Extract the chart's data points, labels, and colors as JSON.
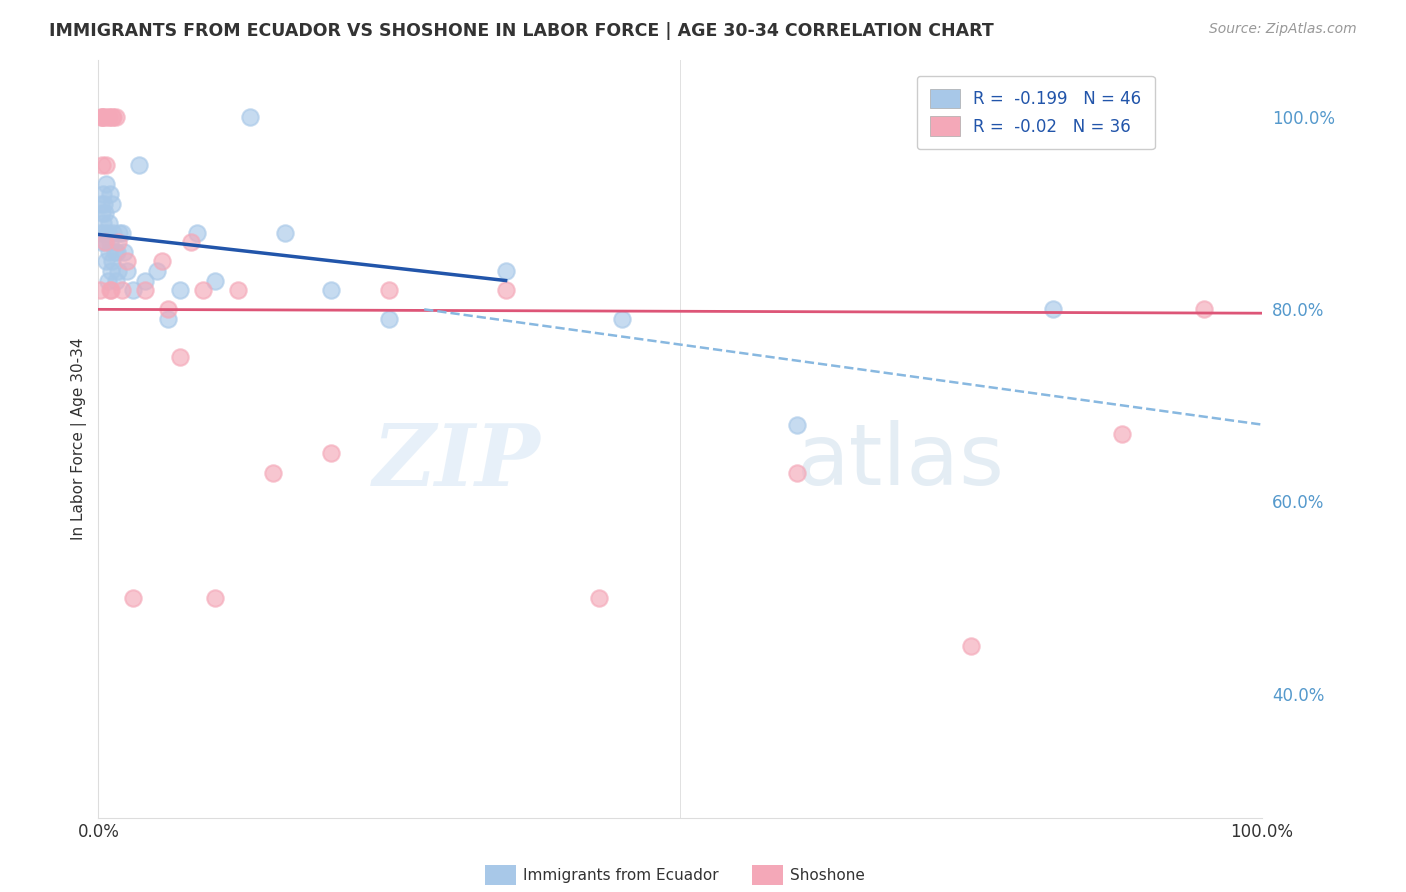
{
  "title": "IMMIGRANTS FROM ECUADOR VS SHOSHONE IN LABOR FORCE | AGE 30-34 CORRELATION CHART",
  "source": "Source: ZipAtlas.com",
  "ylabel": "In Labor Force | Age 30-34",
  "xlim": [
    0,
    1.0
  ],
  "ylim": [
    0.27,
    1.06
  ],
  "yticks": [
    0.4,
    0.6,
    0.8,
    1.0
  ],
  "ytick_labels": [
    "40.0%",
    "60.0%",
    "80.0%",
    "100.0%"
  ],
  "xticks": [
    0.0,
    0.2,
    0.4,
    0.6,
    0.8,
    1.0
  ],
  "xtick_labels": [
    "0.0%",
    "",
    "",
    "",
    "",
    "100.0%"
  ],
  "ecuador_R": -0.199,
  "ecuador_N": 46,
  "shoshone_R": -0.02,
  "shoshone_N": 36,
  "ecuador_color": "#a8c8e8",
  "shoshone_color": "#f4a8b8",
  "ecuador_line_color": "#2255aa",
  "shoshone_line_color": "#dd5577",
  "dashed_line_color": "#88b8e0",
  "watermark_zip": "ZIP",
  "watermark_atlas": "atlas",
  "ecuador_x": [
    0.001,
    0.002,
    0.002,
    0.003,
    0.004,
    0.004,
    0.005,
    0.005,
    0.006,
    0.006,
    0.007,
    0.007,
    0.008,
    0.008,
    0.009,
    0.009,
    0.01,
    0.01,
    0.011,
    0.012,
    0.012,
    0.013,
    0.014,
    0.015,
    0.016,
    0.017,
    0.018,
    0.02,
    0.022,
    0.025,
    0.03,
    0.035,
    0.04,
    0.05,
    0.06,
    0.07,
    0.085,
    0.1,
    0.13,
    0.16,
    0.2,
    0.25,
    0.35,
    0.45,
    0.6,
    0.82
  ],
  "ecuador_y": [
    0.88,
    0.91,
    0.87,
    0.9,
    0.92,
    0.89,
    0.88,
    0.91,
    0.9,
    0.87,
    0.85,
    0.93,
    0.88,
    0.83,
    0.89,
    0.86,
    0.92,
    0.87,
    0.84,
    0.91,
    0.85,
    0.88,
    0.86,
    0.83,
    0.86,
    0.84,
    0.88,
    0.88,
    0.86,
    0.84,
    0.82,
    0.95,
    0.83,
    0.84,
    0.79,
    0.82,
    0.88,
    0.83,
    1.0,
    0.88,
    0.82,
    0.79,
    0.84,
    0.79,
    0.68,
    0.8
  ],
  "shoshone_x": [
    0.001,
    0.002,
    0.003,
    0.003,
    0.004,
    0.005,
    0.006,
    0.007,
    0.008,
    0.009,
    0.01,
    0.011,
    0.012,
    0.013,
    0.015,
    0.017,
    0.02,
    0.025,
    0.03,
    0.04,
    0.055,
    0.06,
    0.07,
    0.08,
    0.09,
    0.1,
    0.12,
    0.15,
    0.2,
    0.25,
    0.35,
    0.43,
    0.6,
    0.75,
    0.88,
    0.95
  ],
  "shoshone_y": [
    0.82,
    1.0,
    1.0,
    0.95,
    1.0,
    1.0,
    0.87,
    0.95,
    1.0,
    1.0,
    0.82,
    0.82,
    1.0,
    1.0,
    1.0,
    0.87,
    0.82,
    0.85,
    0.5,
    0.82,
    0.85,
    0.8,
    0.75,
    0.87,
    0.82,
    0.5,
    0.82,
    0.63,
    0.65,
    0.82,
    0.82,
    0.5,
    0.63,
    0.45,
    0.67,
    0.8
  ],
  "blue_line_x0": 0.0,
  "blue_line_y0": 0.878,
  "blue_line_x1": 0.35,
  "blue_line_y1": 0.83,
  "pink_line_x0": 0.0,
  "pink_line_y0": 0.8,
  "pink_line_x1": 1.0,
  "pink_line_y1": 0.796,
  "dash_line_x0": 0.28,
  "dash_line_y0": 0.8,
  "dash_line_x1": 1.0,
  "dash_line_y1": 0.68
}
